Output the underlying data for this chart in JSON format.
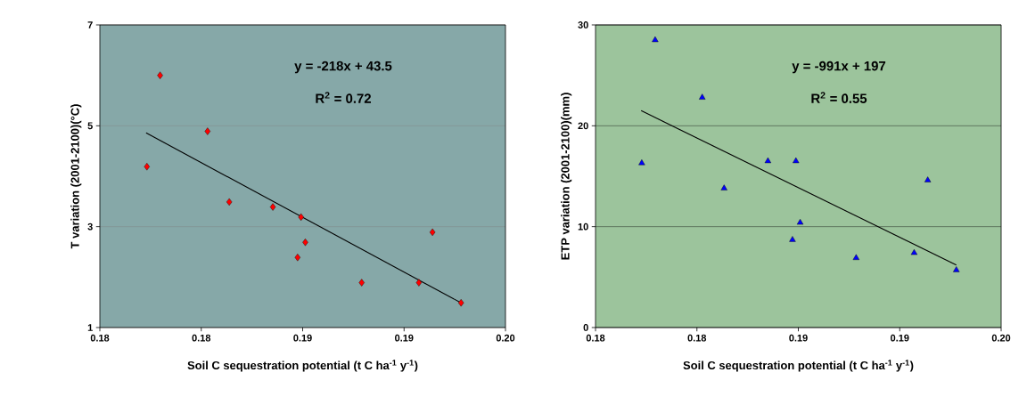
{
  "chart_data": [
    {
      "type": "scatter",
      "xlabel": "Soil C sequestration potential (t C ha$^{-1}$ y$^{-1}$)",
      "ylabel": "T variation (2001-2100)(°C)",
      "annotations": [
        "y = -218x + 43.5",
        "R$^{2}$ = 0.72"
      ],
      "xlim": [
        0.18,
        0.2
      ],
      "ylim": [
        1,
        7
      ],
      "xticks": [
        {
          "value": 0.18,
          "label": "0.18"
        },
        {
          "value": 0.185,
          "label": "0.18"
        },
        {
          "value": 0.19,
          "label": "0.19"
        },
        {
          "value": 0.195,
          "label": "0.19"
        },
        {
          "value": 0.2,
          "label": "0.20"
        }
      ],
      "yticks": [
        1,
        3,
        5,
        7
      ],
      "grid": "y",
      "series": [
        {
          "type": "scatter",
          "color": "#ff0000",
          "marker": "diamond",
          "x": [
            0.18232,
            0.18297,
            0.18531,
            0.18638,
            0.18853,
            0.18992,
            0.19013,
            0.18975,
            0.19291,
            0.19573,
            0.1964,
            0.19781
          ],
          "values": [
            4.19,
            6.0,
            4.89,
            3.49,
            3.39,
            3.19,
            2.69,
            2.39,
            1.89,
            1.89,
            2.89,
            1.49
          ]
        },
        {
          "type": "line",
          "color": "#000000",
          "marker": "none",
          "x": [
            0.18228,
            0.19781
          ],
          "values": [
            4.86,
            1.49
          ]
        }
      ]
    },
    {
      "type": "scatter",
      "xlabel": "Soil C sequestration potential (t C ha$^{-1}$ y$^{-1}$)",
      "ylabel": "ETP  variation (2001-2100)(mm)",
      "annotations": [
        "y = -991x + 197",
        "R$^{2}$ = 0.55"
      ],
      "xlim": [
        0.18,
        0.2
      ],
      "ylim": [
        0,
        30
      ],
      "xticks": [
        {
          "value": 0.18,
          "label": "0.18"
        },
        {
          "value": 0.185,
          "label": "0.18"
        },
        {
          "value": 0.19,
          "label": "0.19"
        },
        {
          "value": 0.195,
          "label": "0.19"
        },
        {
          "value": 0.2,
          "label": "0.20"
        }
      ],
      "yticks": [
        0,
        10,
        20,
        30
      ],
      "grid": "y",
      "series": [
        {
          "type": "scatter",
          "color": "#0000ff",
          "marker": "triangle",
          "x": [
            0.18228,
            0.18294,
            0.18526,
            0.18634,
            0.1885,
            0.18988,
            0.19009,
            0.18971,
            0.19285,
            0.19571,
            0.19638,
            0.19779
          ],
          "values": [
            16.3,
            28.5,
            22.8,
            13.8,
            16.5,
            16.5,
            10.4,
            8.7,
            6.9,
            7.4,
            14.6,
            5.7
          ]
        },
        {
          "type": "line",
          "color": "#000000",
          "marker": "none",
          "x": [
            0.18225,
            0.19779
          ],
          "values": [
            21.5,
            6.2
          ]
        }
      ]
    }
  ]
}
